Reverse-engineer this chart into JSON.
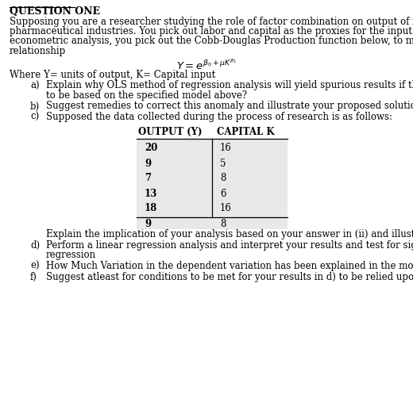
{
  "title": "QUESTION ONE",
  "intro_lines": [
    "Supposing you are a researcher studying the role of factor combination on output of firms in the",
    "pharmaceutical industries. You pick out labor and capital as the proxies for the input factors. To do you",
    "econometric analysis, you pick out the Cobb-Douglas Production function below, to model this",
    "relationship"
  ],
  "equation": "$Y = e^{\\beta_0+\\mu K^{\\beta_1}}$",
  "where_text": "Where Y= units of output, K= Capital input",
  "item_a_label": "a)",
  "item_a_line1": "Explain why OLS method of regression analysis will yield spurious results if the analysis was",
  "item_a_line2": "to be based on the specified model above?",
  "item_b_label": "b)",
  "item_b_text": "Suggest remedies to correct this anomaly and illustrate your proposed solution on the same.",
  "item_c_label": "c)",
  "item_c_text": "Supposed the data collected during the process of research is as follows:",
  "table_header": [
    "OUTPUT (Y)",
    "CAPITAL K"
  ],
  "table_data": [
    [
      "20",
      "16"
    ],
    [
      "9",
      "5"
    ],
    [
      "7",
      "8"
    ],
    [
      "13",
      "6"
    ],
    [
      "18",
      "16"
    ],
    [
      "9",
      "8"
    ]
  ],
  "after_table_indent": "    Explain the implication of your analysis based on your answer in (ii) and illustrate.",
  "item_d_label": "d)",
  "item_d_line1": "Perform a linear regression analysis and interpret your results and test for significance of",
  "item_d_line2": "regression",
  "item_e_label": "e)",
  "item_e_text": "How Much Variation in the dependent variation has been explained in the model?",
  "item_f_label": "f)",
  "item_f_text": "Suggest atleast for conditions to be met for your results in d) to be relied upon.",
  "bg_color": "#ffffff",
  "text_color": "#000000",
  "gray_row": "#e8e8e8",
  "fs": 8.5,
  "fs_title": 9.0,
  "fs_eq": 9.5
}
